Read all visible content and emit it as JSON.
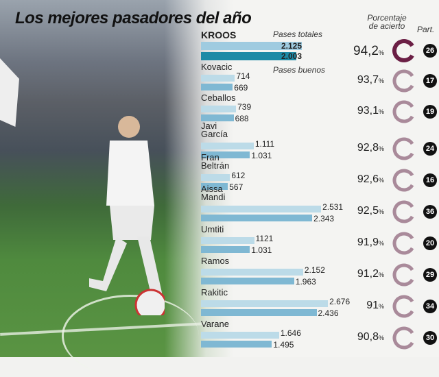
{
  "title": "Los mejores pasadores del año",
  "chart_data": {
    "type": "bar",
    "title": "Los mejores pasadores del año",
    "series": [
      {
        "name": "Pases totales"
      },
      {
        "name": "Pases buenos"
      }
    ],
    "headers": {
      "total": "Pases totales",
      "good": "Pases buenos",
      "pct": "Porcentaje de acierto",
      "games": "Part."
    },
    "colors": {
      "total": "#bcdbe8",
      "good": "#7fb8d3",
      "highlight_good": "#1e8aa6",
      "ring_highlight": "#6b1f45",
      "ring": "#a98a9a"
    },
    "rows": [
      {
        "name": "KROOS",
        "total": 2125,
        "total_label": "2.125",
        "good": 2003,
        "good_label": "2.003",
        "pct": "94,2",
        "games": "26"
      },
      {
        "name": "Kovacic",
        "total": 714,
        "total_label": "714",
        "good": 669,
        "good_label": "669",
        "pct": "93,7",
        "games": "17"
      },
      {
        "name": "Ceballos",
        "total": 739,
        "total_label": "739",
        "good": 688,
        "good_label": "688",
        "pct": "93,1",
        "games": "19"
      },
      {
        "name": "Javi\nGarcía",
        "total": 1111,
        "total_label": "1.111",
        "good": 1031,
        "good_label": "1.031",
        "pct": "92,8",
        "games": "24"
      },
      {
        "name": "Fran\nBeltrán",
        "total": 612,
        "total_label": "612",
        "good": 567,
        "good_label": "567",
        "pct": "92,6",
        "games": "16"
      },
      {
        "name": "Aissa\nMandi",
        "total": 2531,
        "total_label": "2.531",
        "good": 2343,
        "good_label": "2.343",
        "pct": "92,5",
        "games": "36"
      },
      {
        "name": "Umtiti",
        "total": 1121,
        "total_label": "1121",
        "good": 1031,
        "good_label": "1.031",
        "pct": "91,9",
        "games": "20"
      },
      {
        "name": "Ramos",
        "total": 2152,
        "total_label": "2.152",
        "good": 1963,
        "good_label": "1.963",
        "pct": "91,2",
        "games": "29"
      },
      {
        "name": "Rakitic",
        "total": 2676,
        "total_label": "2.676",
        "good": 2436,
        "good_label": "2.436",
        "pct": "91",
        "games": "34"
      },
      {
        "name": "Varane",
        "total": 1646,
        "total_label": "1.646",
        "good": 1495,
        "good_label": "1.495",
        "pct": "90,8",
        "games": "30"
      }
    ],
    "pct_unit": "%"
  }
}
